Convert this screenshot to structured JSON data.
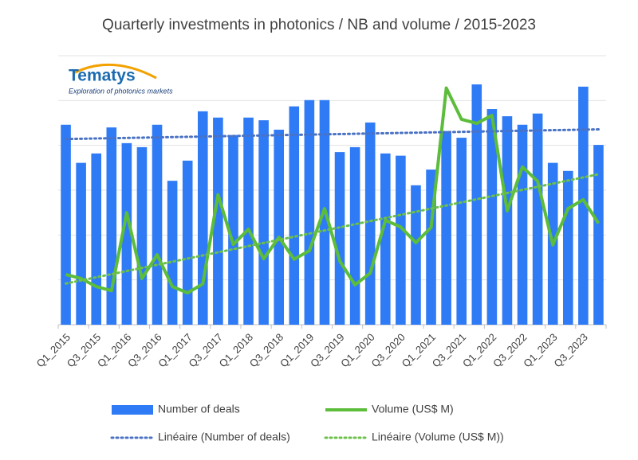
{
  "chart_data": {
    "type": "bar_line",
    "title": "Quarterly investments in photonics / NB and volume / 2015-2023",
    "logo": {
      "name": "Tematys",
      "tagline": "Exploration of photonics markets"
    },
    "categories": [
      "Q1_2015",
      null,
      "Q3_2015",
      null,
      "Q1_2016",
      null,
      "Q3_2016",
      null,
      "Q1_2017",
      null,
      "Q3_2017",
      null,
      "Q1_2018",
      null,
      "Q3_2018",
      null,
      "Q1_2019",
      null,
      "Q3_2019",
      null,
      "Q1_2020",
      null,
      "Q3_2020",
      null,
      "Q1_2021",
      null,
      "Q3_2021",
      null,
      "Q1_2022",
      null,
      "Q3_2022",
      null,
      "Q1_2023",
      null,
      "Q3_2023",
      null
    ],
    "series": [
      {
        "name": "Number of deals",
        "type": "bar",
        "color": "#2f7bf5",
        "values": [
          44.6,
          36.1,
          38.2,
          44.0,
          40.5,
          39.6,
          44.6,
          32.1,
          36.6,
          47.6,
          46.2,
          42.3,
          46.2,
          45.6,
          43.5,
          48.7,
          50.1,
          50.1,
          38.5,
          39.6,
          45.1,
          38.2,
          37.7,
          31.1,
          34.6,
          43.2,
          41.7,
          53.6,
          48.1,
          46.5,
          44.6,
          47.1,
          36.1,
          34.3,
          53.1,
          40.1
        ]
      },
      {
        "name": "Volume (US$ M)",
        "type": "line",
        "color": "#5cbd3a",
        "values": [
          11.2,
          10.3,
          8.5,
          7.6,
          25.0,
          10.3,
          15.6,
          8.5,
          7.1,
          9.1,
          29.0,
          17.9,
          21.3,
          14.7,
          19.5,
          14.6,
          16.5,
          25.9,
          14.2,
          8.9,
          11.5,
          23.3,
          21.8,
          18.3,
          21.7,
          52.8,
          45.8,
          44.9,
          46.7,
          25.4,
          35.2,
          32.0,
          17.8,
          25.9,
          27.9,
          22.6
        ]
      }
    ],
    "trendlines": [
      {
        "name": "Linéaire (Number of deals)",
        "series": 0,
        "color": "#4a72c4"
      },
      {
        "name": "Linéaire (Volume (US$ M))",
        "series": 1,
        "color": "#6cc04a"
      }
    ],
    "ylim": [
      0,
      60
    ],
    "gridlines": [
      0,
      10,
      20,
      30,
      40,
      50,
      60
    ],
    "grid": true
  }
}
